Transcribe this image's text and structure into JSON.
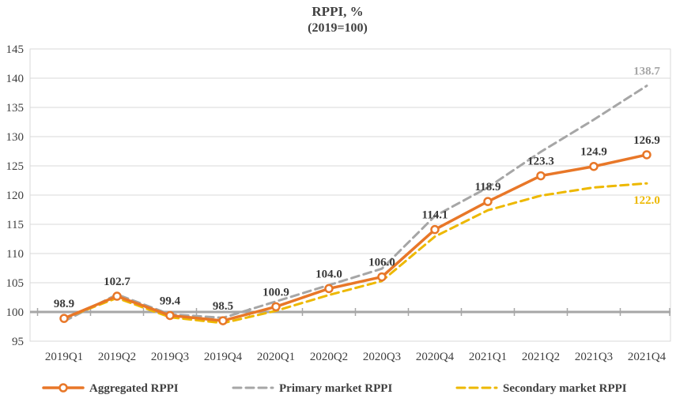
{
  "chart_data": {
    "type": "line",
    "title": "RPPI, %",
    "subtitle": "(2019=100)",
    "categories": [
      "2019Q1",
      "2019Q2",
      "2019Q3",
      "2019Q4",
      "2020Q1",
      "2020Q2",
      "2020Q3",
      "2020Q4",
      "2021Q1",
      "2021Q2",
      "2021Q3",
      "2021Q4"
    ],
    "xlabel": "",
    "ylabel": "",
    "ylim": [
      95,
      145
    ],
    "y_axis": {
      "min": 95,
      "max": 145,
      "step": 5
    },
    "baseline": 100,
    "grid": true,
    "legend_position": "bottom",
    "colors": {
      "aggregated": "#e87728",
      "primary": "#a6a6a6",
      "secondary": "#edb800",
      "gridline": "#d9d9d9",
      "plot_border": "#d9d9d9",
      "baseline": "#a6a6a6",
      "text": "#404040",
      "data_label": "#3a3a3a"
    },
    "series": [
      {
        "name": "Aggregated RPPI",
        "slug": "aggregated-rppi",
        "color": "#e87728",
        "style": "solid",
        "marker": "circle",
        "values": [
          98.9,
          102.7,
          99.4,
          98.5,
          100.9,
          104.0,
          106.0,
          114.1,
          118.9,
          123.3,
          124.9,
          126.9
        ],
        "point_labels": [
          "98.9",
          "102.7",
          "99.4",
          "98.5",
          "100.9",
          "104.0",
          "106.0",
          "114.1",
          "118.9",
          "123.3",
          "124.9",
          "126.9"
        ]
      },
      {
        "name": "Primary market RPPI",
        "slug": "primary-market-rppi",
        "color": "#a6a6a6",
        "style": "dashed",
        "marker": "none",
        "values": [
          98.4,
          103.0,
          99.6,
          99.0,
          101.8,
          104.6,
          107.4,
          116.4,
          121.3,
          127.4,
          132.9,
          138.7
        ],
        "end_label": "138.7",
        "end_label_position": "above"
      },
      {
        "name": "Secondary market RPPI",
        "slug": "secondary-market-rppi",
        "color": "#edb800",
        "style": "dashed",
        "marker": "none",
        "values": [
          98.9,
          102.4,
          99.1,
          98.1,
          100.2,
          102.9,
          105.3,
          112.9,
          117.4,
          119.9,
          121.3,
          122.0
        ],
        "end_label": "122.0",
        "end_label_position": "below"
      }
    ]
  }
}
